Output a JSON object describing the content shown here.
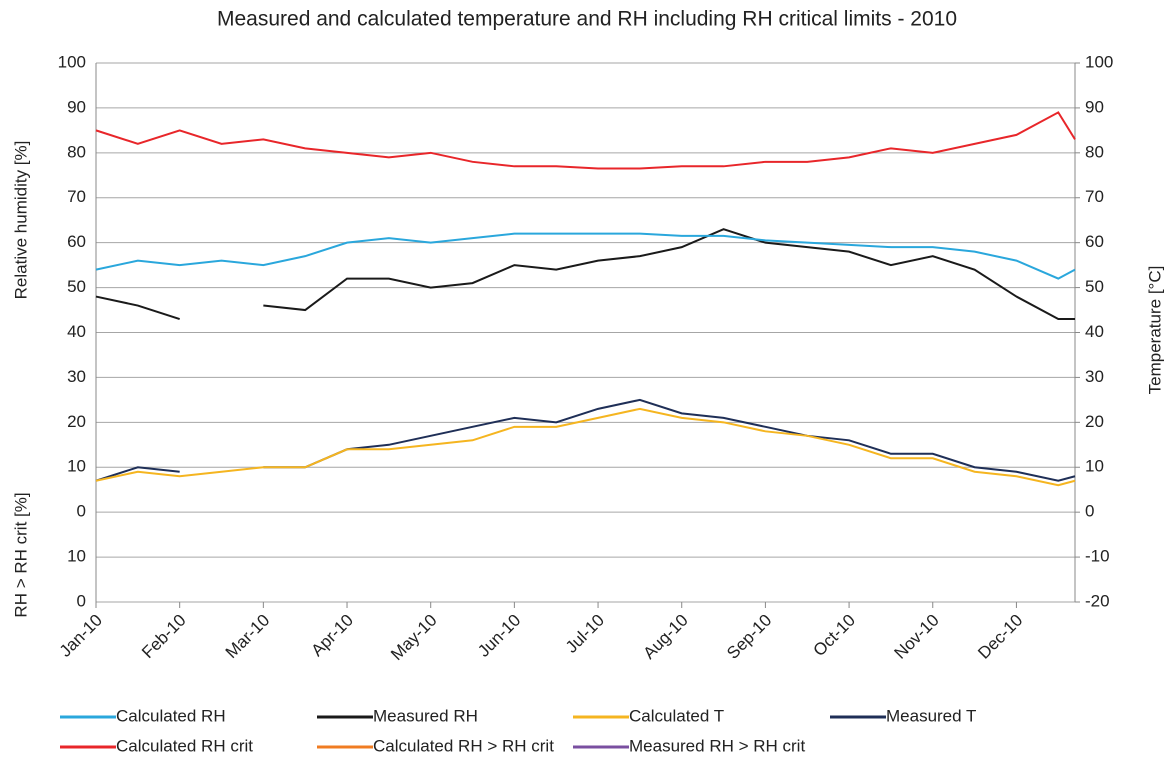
{
  "chart_data": {
    "type": "line",
    "title": "Measured and calculated temperature and RH including RH critical limits - 2010",
    "ylabel": "Relative humidity [%]",
    "ylabel2": "RH > RH crit [%]",
    "y2label": "Temperature [°C]",
    "xlim": [
      0,
      11.7
    ],
    "xticks": [
      {
        "value": 0,
        "label": "Jan-10"
      },
      {
        "value": 1,
        "label": "Feb-10"
      },
      {
        "value": 2,
        "label": "Mar-10"
      },
      {
        "value": 3,
        "label": "Apr-10"
      },
      {
        "value": 4,
        "label": "May-10"
      },
      {
        "value": 5,
        "label": "Jun-10"
      },
      {
        "value": 6,
        "label": "Jul-10"
      },
      {
        "value": 7,
        "label": "Aug-10"
      },
      {
        "value": 8,
        "label": "Sep-10"
      },
      {
        "value": 9,
        "label": "Oct-10"
      },
      {
        "value": 10,
        "label": "Nov-10"
      },
      {
        "value": 11,
        "label": "Dec-10"
      }
    ],
    "ylim": [
      -20,
      100
    ],
    "yticks": [
      {
        "value": -20,
        "label": "0"
      },
      {
        "value": -10,
        "label": "10"
      },
      0,
      10,
      20,
      30,
      40,
      50,
      60,
      70,
      80,
      90,
      100
    ],
    "y2lim": [
      -20,
      100
    ],
    "y2ticks": [
      -20,
      -10,
      0,
      10,
      20,
      30,
      40,
      50,
      60,
      70,
      80,
      90,
      100
    ],
    "grid": true,
    "x": [
      0,
      0.5,
      1,
      1.5,
      2,
      2.5,
      3,
      3.5,
      4,
      4.5,
      5,
      5.5,
      6,
      6.5,
      7,
      7.5,
      8,
      8.5,
      9,
      9.5,
      10,
      10.5,
      11,
      11.5,
      11.7
    ],
    "series": [
      {
        "name": "Calculated RH",
        "color": "#2aa7dc",
        "values": [
          54,
          56,
          55,
          56,
          55,
          57,
          60,
          61,
          60,
          61,
          62,
          62,
          62,
          62,
          61.5,
          61.5,
          60.5,
          60,
          59.5,
          59,
          59,
          58,
          56,
          52,
          54
        ]
      },
      {
        "name": "Measured RH",
        "color": "#1a1a1a",
        "values": [
          48,
          46,
          43,
          null,
          46,
          45,
          52,
          52,
          50,
          51,
          55,
          54,
          56,
          57,
          59,
          63,
          60,
          59,
          58,
          55,
          57,
          54,
          48,
          43,
          43
        ]
      },
      {
        "name": "Calculated T",
        "color": "#f5b520",
        "axis": "y2",
        "values": [
          7,
          9,
          8,
          9,
          10,
          10,
          14,
          14,
          15,
          16,
          19,
          19,
          21,
          23,
          21,
          20,
          18,
          17,
          15,
          12,
          12,
          9,
          8,
          6,
          7
        ]
      },
      {
        "name": "Measured T",
        "color": "#1f2f57",
        "axis": "y2",
        "values": [
          7,
          10,
          9,
          null,
          10,
          10,
          14,
          15,
          17,
          19,
          21,
          20,
          23,
          25,
          22,
          21,
          19,
          17,
          16,
          13,
          13,
          10,
          9,
          7,
          8
        ]
      },
      {
        "name": "Calculated RH crit",
        "color": "#e8262a",
        "values": [
          85,
          82,
          85,
          82,
          83,
          81,
          80,
          79,
          80,
          78,
          77,
          77,
          76.5,
          76.5,
          77,
          77,
          78,
          78,
          79,
          81,
          80,
          82,
          84,
          89,
          83
        ]
      },
      {
        "name": "Calculated RH > RH crit",
        "color": "#f07c22"
      },
      {
        "name": "Measured RH > RH crit",
        "color": "#7a4fa0"
      }
    ]
  }
}
